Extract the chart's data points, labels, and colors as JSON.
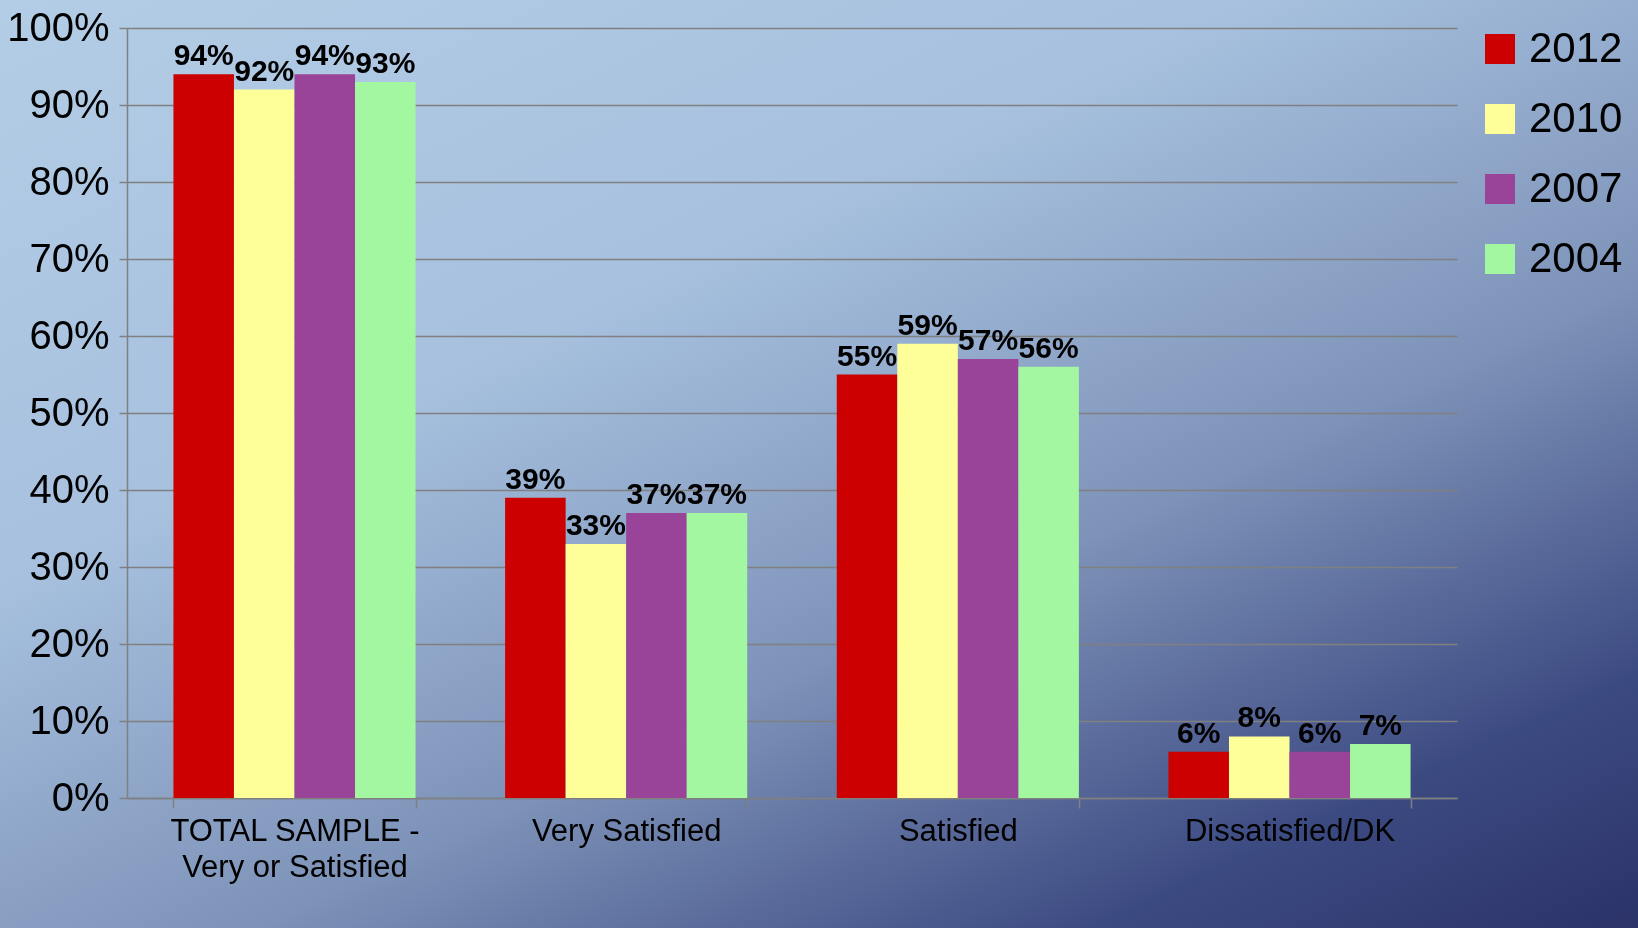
{
  "chart_data": {
    "type": "bar",
    "categories": [
      "TOTAL SAMPLE - Very or Satisfied",
      "Very Satisfied",
      "Satisfied",
      "Dissatisfied/DK"
    ],
    "series": [
      {
        "name": "2012",
        "color": "#cc0000",
        "values": [
          94,
          39,
          55,
          6
        ],
        "value_labels": [
          "94%",
          "39%",
          "55%",
          "6%"
        ]
      },
      {
        "name": "2010",
        "color": "#ffff99",
        "values": [
          92,
          33,
          59,
          8
        ],
        "value_labels": [
          "92%",
          "33%",
          "59%",
          "8%"
        ]
      },
      {
        "name": "2007",
        "color": "#994499",
        "values": [
          94,
          37,
          57,
          6
        ],
        "value_labels": [
          "94%",
          "37%",
          "57%",
          "6%"
        ]
      },
      {
        "name": "2004",
        "color": "#a3f7a0",
        "values": [
          93,
          37,
          56,
          7
        ],
        "value_labels": [
          "93%",
          "37%",
          "56%",
          "7%"
        ]
      }
    ],
    "ylim": [
      0,
      100
    ],
    "yticks": [
      {
        "value": 0,
        "label": "0%"
      },
      {
        "value": 10,
        "label": "10%"
      },
      {
        "value": 20,
        "label": "20%"
      },
      {
        "value": 30,
        "label": "30%"
      },
      {
        "value": 40,
        "label": "40%"
      },
      {
        "value": 50,
        "label": "50%"
      },
      {
        "value": 60,
        "label": "60%"
      },
      {
        "value": 70,
        "label": "70%"
      },
      {
        "value": 80,
        "label": "80%"
      },
      {
        "value": 90,
        "label": "90%"
      },
      {
        "value": 100,
        "label": "100%"
      }
    ],
    "grid": "y",
    "legend": "right"
  }
}
